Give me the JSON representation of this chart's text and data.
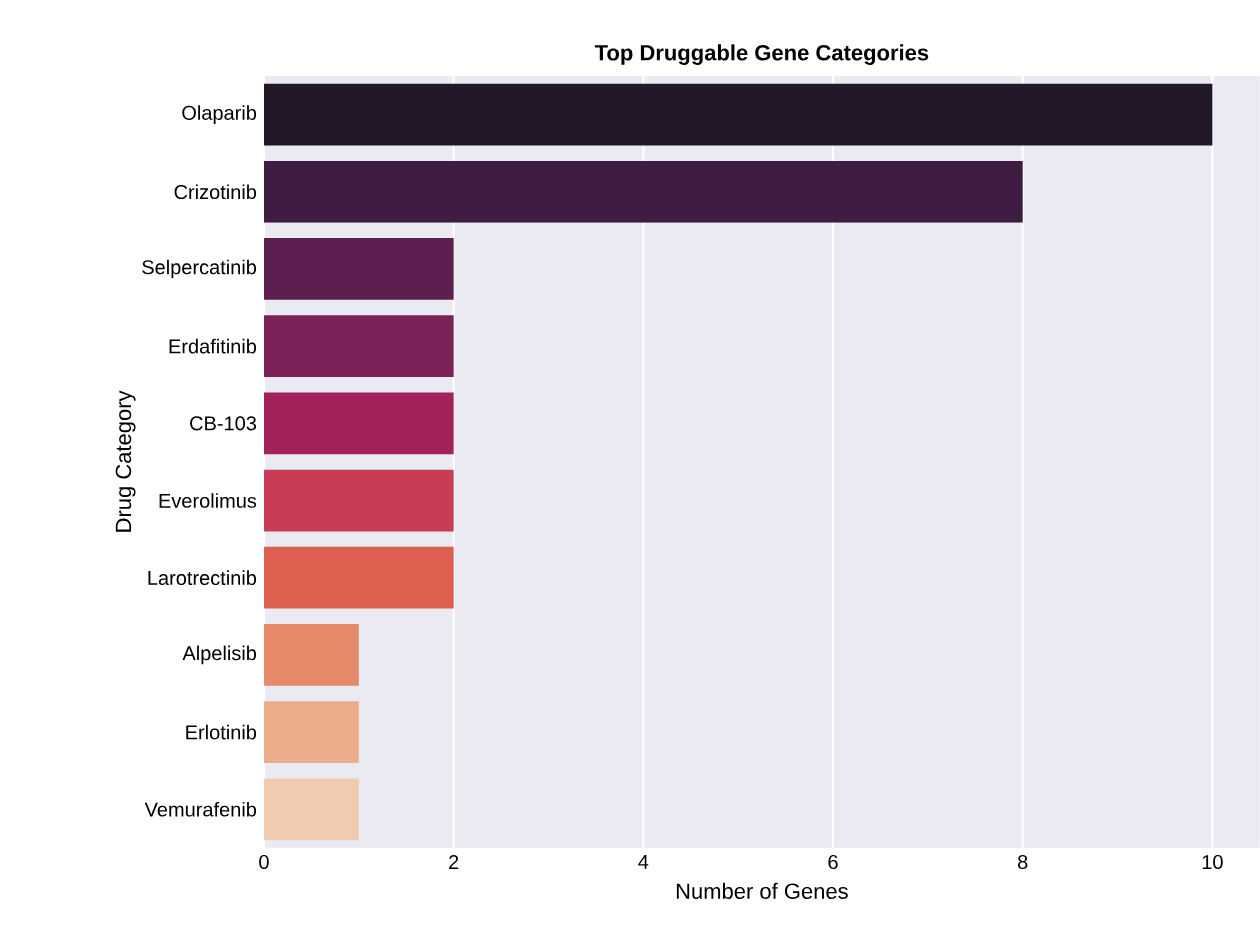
{
  "chart_data": {
    "type": "bar",
    "orientation": "horizontal",
    "title": "Top Druggable Gene Categories",
    "xlabel": "Number of Genes",
    "ylabel": "Drug Category",
    "categories": [
      "Olaparib",
      "Crizotinib",
      "Selpercatinib",
      "Erdafitinib",
      "CB-103",
      "Everolimus",
      "Larotrectinib",
      "Alpelisib",
      "Erlotinib",
      "Vemurafenib"
    ],
    "values": [
      10,
      8,
      2,
      2,
      2,
      2,
      2,
      1,
      1,
      1
    ],
    "colors": [
      "#23172a",
      "#3f1d42",
      "#5c1f4f",
      "#7b2158",
      "#a3225c",
      "#c83d55",
      "#dd5f4f",
      "#e78a6a",
      "#ebac89",
      "#f0cbb0"
    ],
    "xlim": [
      0,
      10.5
    ],
    "xticks": [
      0,
      2,
      4,
      6,
      8,
      10
    ],
    "grid": "x"
  }
}
